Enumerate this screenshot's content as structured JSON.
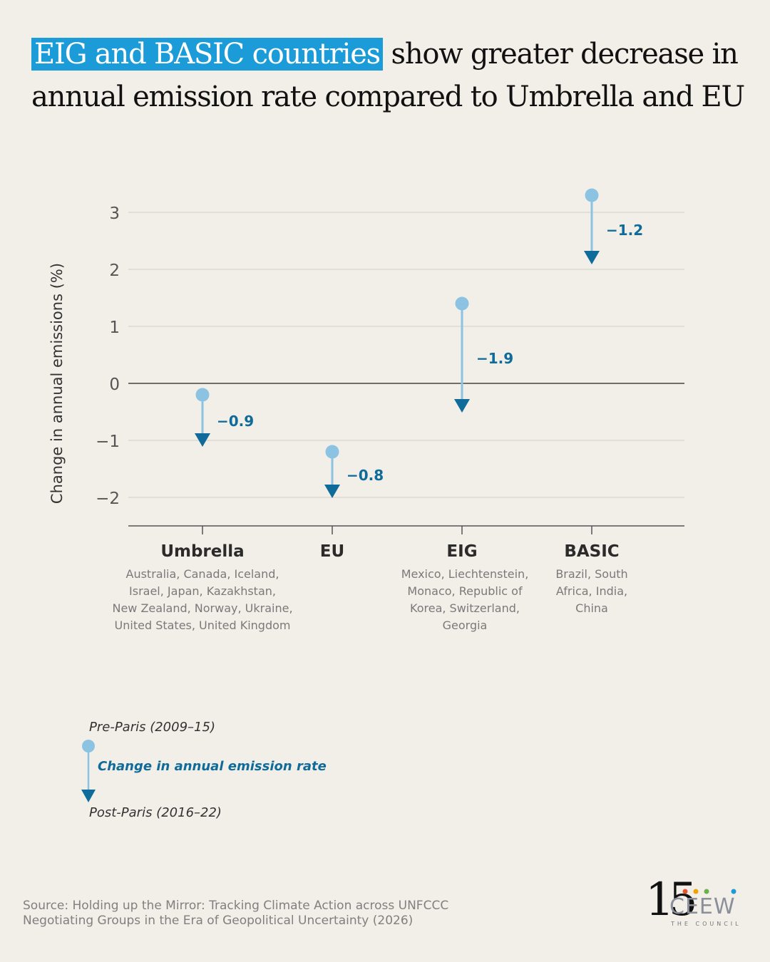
{
  "header": {
    "title_highlight": "EIG and BASIC countries",
    "title_rest_line1": " show  greater decrease in",
    "title_line2": "annual emission rate compared to Umbrella and EU"
  },
  "chart_data": {
    "type": "arrow-dot",
    "ylabel": "Change in annual emissions (%)",
    "ylim": [
      -2.5,
      3.5
    ],
    "yticks": [
      3,
      2,
      1,
      0,
      -1,
      -2
    ],
    "ytick_labels": [
      "3",
      "2",
      "1",
      "0",
      "−1",
      "−2"
    ],
    "categories": [
      "Umbrella",
      "EU",
      "EIG",
      "BASIC"
    ],
    "members": [
      [
        "Australia, Canada, Iceland,",
        "Israel, Japan, Kazakhstan,",
        "New Zealand, Norway, Ukraine,",
        "United States, United Kingdom"
      ],
      [],
      [
        "Mexico, Liechtenstein,",
        "Monaco, Republic of",
        "Korea, Switzerland,",
        "Georgia"
      ],
      [
        "Brazil, South",
        "Africa, India,",
        "China"
      ]
    ],
    "series": [
      {
        "name": "Pre-Paris (2009–15)",
        "values": [
          -0.2,
          -1.2,
          1.4,
          3.3
        ]
      },
      {
        "name": "Post-Paris (2016–22)",
        "values": [
          -1.1,
          -2.0,
          -0.5,
          2.1
        ]
      }
    ],
    "change_labels": [
      "−0.9",
      "−0.8",
      "−1.9",
      "−1.2"
    ],
    "colors": {
      "pre": "#8cc3e3",
      "post": "#0e6b9a",
      "label": "#0e6b9a",
      "grid": "#d9d6d0",
      "zero": "#444444",
      "axis": "#555555"
    },
    "grid": true
  },
  "legend": {
    "pre": "Pre-Paris (2009–15)",
    "change": "Change in annual emission rate",
    "post": "Post-Paris (2016–22)"
  },
  "source": {
    "line1": "Source: Holding up the Mirror: Tracking Climate Action across UNFCCC",
    "line2": "Negotiating Groups in the Era of Geopolitical Uncertainty (2026)"
  },
  "logo": {
    "number": "15",
    "name": "CEEW",
    "tagline": "THE COUNCIL",
    "dot_colors": [
      "#e4572e",
      "#f0a202",
      "#6ab04c",
      "#1b9bd8"
    ]
  }
}
